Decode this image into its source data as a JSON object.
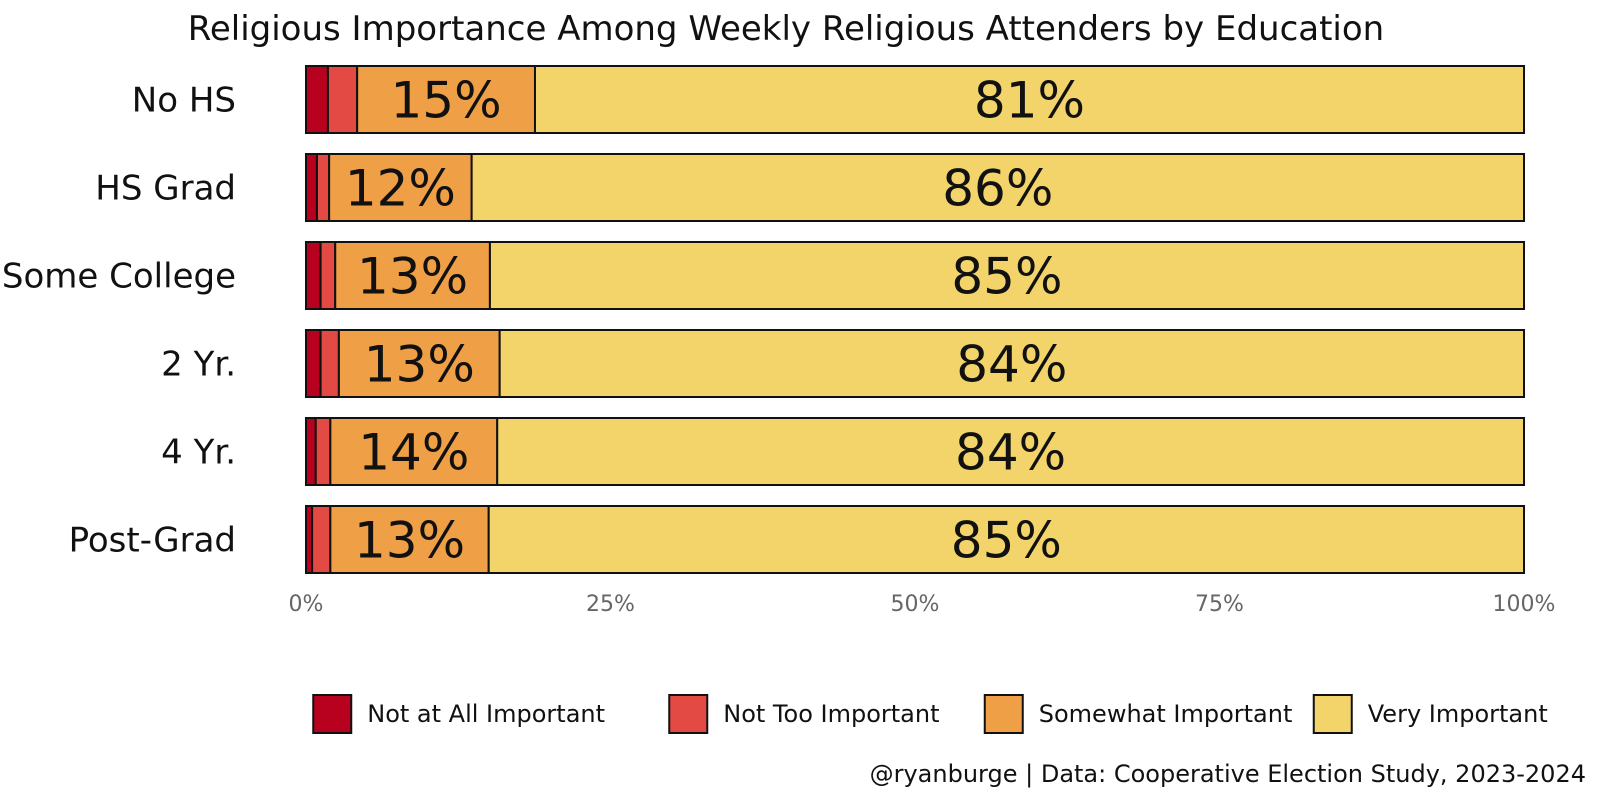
{
  "chart_data": {
    "type": "bar",
    "orientation": "horizontal",
    "stacked": true,
    "title": "Religious Importance Among Weekly Religious Attenders by Education",
    "categories": [
      "No HS",
      "HS Grad",
      "Some College",
      "2 Yr.",
      "4 Yr.",
      "Post-Grad"
    ],
    "series": [
      {
        "name": "Not at All Important",
        "color": "#b8001f",
        "values": [
          1.8,
          0.9,
          1.2,
          1.2,
          0.8,
          0.5
        ]
      },
      {
        "name": "Not Too Important",
        "color": "#e34a44",
        "values": [
          2.4,
          1.0,
          1.2,
          1.5,
          1.2,
          1.5
        ]
      },
      {
        "name": "Somewhat Important",
        "color": "#ef9f45",
        "values": [
          14.6,
          11.7,
          12.7,
          13.2,
          13.7,
          13.0
        ]
      },
      {
        "name": "Very Important",
        "color": "#f2d46b",
        "values": [
          81.2,
          86.4,
          84.9,
          84.1,
          84.3,
          85.0
        ]
      }
    ],
    "data_labels": {
      "Somewhat Important": [
        "15%",
        "12%",
        "13%",
        "13%",
        "14%",
        "13%"
      ],
      "Very Important": [
        "81%",
        "86%",
        "85%",
        "84%",
        "84%",
        "85%"
      ]
    },
    "xlim": [
      0,
      100
    ],
    "x_ticks": [
      "0%",
      "25%",
      "50%",
      "75%",
      "100%"
    ],
    "legend_position": "bottom",
    "grid": false
  },
  "caption": "@ryanburge | Data: Cooperative Election Study, 2023-2024"
}
